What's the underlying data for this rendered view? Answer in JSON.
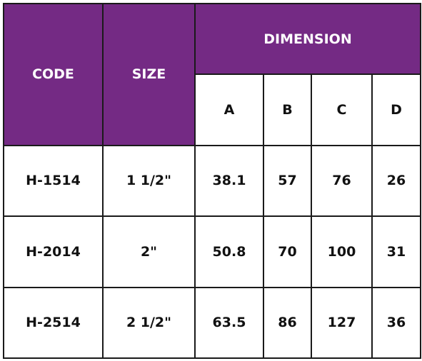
{
  "table": {
    "header": {
      "code": "CODE",
      "size": "SIZE",
      "dimension": "DIMENSION",
      "sub": [
        "A",
        "B",
        "C",
        "D"
      ]
    },
    "rows": [
      [
        "H-1514",
        "1 1/2\"",
        "38.1",
        "57",
        "76",
        "26"
      ],
      [
        "H-2014",
        "2\"",
        "50.8",
        "70",
        "100",
        "31"
      ],
      [
        "H-2514",
        "2 1/2\"",
        "63.5",
        "86",
        "127",
        "36"
      ]
    ]
  }
}
